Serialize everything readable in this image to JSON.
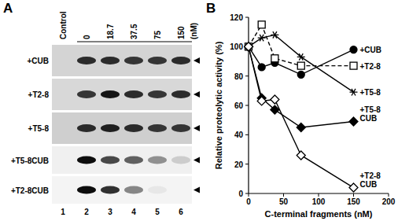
{
  "panel_labels": [
    "A",
    "B"
  ],
  "blot": {
    "concentrations": [
      "Control",
      "0",
      "18.7",
      "37.5",
      "75",
      "150"
    ],
    "unit": "(nM)",
    "lanes": [
      1,
      2,
      3,
      4,
      5,
      6
    ],
    "rows": [
      {
        "label": "+CUB",
        "bands": [
          0,
          0.8,
          0.8,
          0.75,
          0.75,
          0.8
        ]
      },
      {
        "label": "+T2-8",
        "bands": [
          0,
          0.75,
          0.9,
          0.8,
          0.75,
          0.8
        ]
      },
      {
        "label": "+T5-8",
        "bands": [
          0,
          0.8,
          0.85,
          0.8,
          0.75,
          0.75
        ]
      },
      {
        "label": "+T5-8CUB",
        "bands": [
          0,
          0.95,
          0.7,
          0.6,
          0.4,
          0.15
        ]
      },
      {
        "label": "+T2-8CUB",
        "bands": [
          0,
          0.95,
          0.8,
          0.45,
          0.05,
          0
        ]
      }
    ]
  },
  "chart_data": {
    "type": "line",
    "x_label": "C-terminal fragments (nM)",
    "y_label": "Relative proteolytic activity (%)",
    "x": [
      0,
      18.75,
      37.5,
      75,
      150
    ],
    "xlim": [
      0,
      200
    ],
    "xticks": [
      0,
      50,
      100,
      150,
      200
    ],
    "ylim": [
      0,
      120
    ],
    "yticks": [
      0,
      20,
      40,
      60,
      80,
      100,
      120
    ],
    "series": [
      {
        "name": "+CUB",
        "color": "#000000",
        "marker": "circle",
        "line_style": "solid",
        "values": [
          100,
          86,
          89,
          81,
          98
        ]
      },
      {
        "name": "+T2-8",
        "color": "#000000",
        "marker": "open-square",
        "line_style": "dashed",
        "values": [
          100,
          115,
          92,
          87,
          87
        ]
      },
      {
        "name": "+T5-8",
        "color": "#000000",
        "marker": "star",
        "line_style": "solid",
        "values": [
          100,
          106,
          108,
          93,
          69
        ]
      },
      {
        "name": "+T5-8 CUB",
        "color": "#000000",
        "marker": "diamond",
        "line_style": "solid",
        "values": [
          100,
          65,
          57,
          45,
          49
        ]
      },
      {
        "name": "+T2-8 CUB",
        "color": "#000000",
        "marker": "open-diamond",
        "line_style": "solid",
        "values": [
          100,
          63,
          64,
          26,
          4
        ]
      }
    ]
  }
}
